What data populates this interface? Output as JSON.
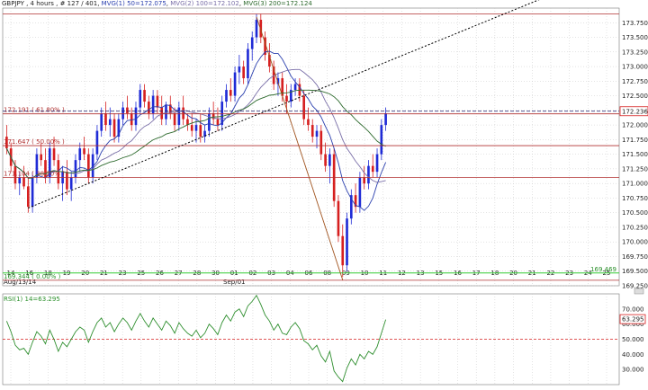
{
  "header": {
    "symbol": "GBPJPY",
    "sep1": " , ",
    "timeframe": "4 hours",
    "sep2": " , ",
    "bars": "# 127 / 401",
    "sep3": ", ",
    "ma1": "MVG(1) 50=172.075",
    "sep4": ", ",
    "ma2": "MVG(2) 100=172.102",
    "sep5": ", ",
    "ma3": "MVG(3) 200=172.124"
  },
  "colors": {
    "background": "#ffffff",
    "grid": "#c8c8c8",
    "bull": "#1f2bd6",
    "bear": "#d61f1f",
    "ma50": "#2a3fae",
    "ma100": "#7a6fa8",
    "ma200": "#2f6b2f",
    "rsi": "#2f8f2f",
    "fib": "#b03030",
    "fib_low": "#33cc33",
    "trend": "#000000"
  },
  "chart_data": [
    {
      "type": "candlestick",
      "title": "GBPJPY , 4 hours",
      "x_labels": [
        "14",
        "16",
        "18",
        "19",
        "20",
        "21",
        "23",
        "25",
        "26",
        "27",
        "28",
        "30",
        "01",
        "02",
        "03",
        "04",
        "06",
        "08",
        "09",
        "10",
        "11",
        "12",
        "13",
        "15",
        "16",
        "17",
        "18",
        "20",
        "21",
        "22",
        "23",
        "24",
        "25"
      ],
      "date_labels": [
        "Aug/13/14",
        "Sep/01"
      ],
      "ylim": [
        169.25,
        174.0
      ],
      "y_ticks": [
        "173.750",
        "173.500",
        "173.250",
        "173.000",
        "172.750",
        "172.500",
        "172.250",
        "172.000",
        "171.750",
        "171.500",
        "171.250",
        "171.000",
        "170.750",
        "170.500",
        "170.250",
        "170.000",
        "169.750",
        "169.500",
        "169.250"
      ],
      "current_price_label": "172.236",
      "current_price": 172.236,
      "fib_labels": [
        "172.191 ( 61.80% )",
        "171.647 ( 50.00% )",
        "171.104 ( 38.20% )",
        "169.344 ( 0.00% )"
      ],
      "fib_levels": [
        173.9,
        172.191,
        171.647,
        171.104,
        169.344
      ],
      "low_price_label": "169.469",
      "low_price": 169.469,
      "grid": true,
      "candles": [
        [
          171.8,
          172.0,
          171.5,
          171.6
        ],
        [
          171.6,
          171.7,
          171.2,
          171.3
        ],
        [
          171.3,
          171.4,
          170.9,
          171.0
        ],
        [
          171.0,
          171.2,
          170.8,
          171.1
        ],
        [
          171.1,
          171.3,
          170.9,
          170.95
        ],
        [
          170.95,
          171.1,
          170.5,
          170.6
        ],
        [
          170.6,
          171.2,
          170.5,
          171.1
        ],
        [
          171.1,
          171.6,
          171.0,
          171.5
        ],
        [
          171.5,
          171.7,
          171.3,
          171.4
        ],
        [
          171.4,
          171.6,
          171.0,
          171.1
        ],
        [
          171.1,
          171.7,
          171.0,
          171.6
        ],
        [
          171.6,
          171.8,
          171.3,
          171.4
        ],
        [
          171.4,
          171.5,
          170.9,
          171.0
        ],
        [
          171.0,
          171.3,
          170.7,
          171.2
        ],
        [
          171.2,
          171.4,
          170.8,
          170.9
        ],
        [
          170.9,
          171.2,
          170.7,
          171.1
        ],
        [
          171.1,
          171.5,
          171.0,
          171.4
        ],
        [
          171.4,
          171.7,
          171.2,
          171.6
        ],
        [
          171.6,
          171.8,
          171.4,
          171.5
        ],
        [
          171.5,
          171.6,
          171.0,
          171.1
        ],
        [
          171.1,
          171.6,
          171.0,
          171.5
        ],
        [
          171.5,
          172.0,
          171.4,
          171.9
        ],
        [
          171.9,
          172.3,
          171.8,
          172.2
        ],
        [
          172.2,
          172.4,
          171.9,
          172.0
        ],
        [
          172.0,
          172.3,
          171.8,
          172.1
        ],
        [
          172.1,
          172.2,
          171.7,
          171.8
        ],
        [
          171.8,
          172.2,
          171.7,
          172.1
        ],
        [
          172.1,
          172.4,
          172.0,
          172.3
        ],
        [
          172.3,
          172.5,
          172.1,
          172.2
        ],
        [
          172.2,
          172.3,
          171.9,
          172.0
        ],
        [
          172.0,
          172.4,
          171.9,
          172.3
        ],
        [
          172.3,
          172.7,
          172.2,
          172.6
        ],
        [
          172.6,
          172.7,
          172.3,
          172.4
        ],
        [
          172.4,
          172.5,
          172.1,
          172.2
        ],
        [
          172.2,
          172.6,
          172.1,
          172.5
        ],
        [
          172.5,
          172.6,
          172.2,
          172.3
        ],
        [
          172.3,
          172.5,
          172.0,
          172.1
        ],
        [
          172.1,
          172.4,
          172.0,
          172.35
        ],
        [
          172.35,
          172.5,
          172.1,
          172.2
        ],
        [
          172.2,
          172.3,
          171.9,
          172.0
        ],
        [
          172.0,
          172.4,
          171.9,
          172.3
        ],
        [
          172.3,
          172.5,
          172.0,
          172.1
        ],
        [
          172.1,
          172.2,
          171.9,
          172.0
        ],
        [
          172.0,
          172.2,
          171.8,
          171.9
        ],
        [
          171.9,
          172.1,
          171.7,
          172.0
        ],
        [
          172.0,
          172.2,
          171.7,
          171.8
        ],
        [
          171.8,
          172.0,
          171.7,
          171.9
        ],
        [
          171.9,
          172.3,
          171.8,
          172.2
        ],
        [
          172.2,
          172.4,
          172.0,
          172.1
        ],
        [
          172.1,
          172.3,
          171.9,
          172.0
        ],
        [
          172.0,
          172.5,
          171.9,
          172.4
        ],
        [
          172.4,
          172.7,
          172.3,
          172.6
        ],
        [
          172.6,
          172.8,
          172.4,
          172.5
        ],
        [
          172.5,
          173.0,
          172.4,
          172.9
        ],
        [
          172.9,
          173.2,
          172.7,
          173.0
        ],
        [
          173.0,
          173.1,
          172.7,
          172.8
        ],
        [
          172.8,
          173.4,
          172.7,
          173.3
        ],
        [
          173.3,
          173.6,
          173.1,
          173.5
        ],
        [
          173.5,
          173.9,
          173.4,
          173.8
        ],
        [
          173.8,
          173.9,
          173.4,
          173.5
        ],
        [
          173.5,
          173.6,
          173.1,
          173.2
        ],
        [
          173.2,
          173.4,
          172.9,
          173.0
        ],
        [
          173.0,
          173.1,
          172.6,
          172.7
        ],
        [
          172.7,
          172.9,
          172.5,
          172.8
        ],
        [
          172.8,
          172.9,
          172.4,
          172.5
        ],
        [
          172.5,
          172.7,
          172.2,
          172.4
        ],
        [
          172.4,
          172.7,
          172.3,
          172.6
        ],
        [
          172.6,
          172.8,
          172.5,
          172.7
        ],
        [
          172.7,
          172.8,
          172.4,
          172.5
        ],
        [
          172.5,
          172.6,
          172.0,
          172.1
        ],
        [
          172.1,
          172.3,
          171.9,
          172.0
        ],
        [
          172.0,
          172.1,
          171.7,
          171.8
        ],
        [
          171.8,
          172.0,
          171.6,
          171.9
        ],
        [
          171.9,
          172.0,
          171.4,
          171.5
        ],
        [
          171.5,
          171.7,
          171.2,
          171.3
        ],
        [
          171.3,
          171.6,
          171.0,
          171.5
        ],
        [
          171.5,
          171.6,
          170.6,
          170.7
        ],
        [
          170.7,
          170.8,
          170.0,
          170.1
        ],
        [
          170.1,
          170.3,
          169.4,
          169.6
        ],
        [
          169.6,
          170.5,
          169.5,
          170.4
        ],
        [
          170.4,
          170.9,
          170.3,
          170.8
        ],
        [
          170.8,
          171.0,
          170.5,
          170.6
        ],
        [
          170.6,
          171.2,
          170.5,
          171.1
        ],
        [
          171.1,
          171.3,
          170.9,
          171.0
        ],
        [
          171.0,
          171.4,
          170.9,
          171.3
        ],
        [
          171.3,
          171.5,
          171.1,
          171.2
        ],
        [
          171.2,
          171.6,
          171.1,
          171.5
        ],
        [
          171.5,
          172.1,
          171.4,
          172.0
        ],
        [
          172.0,
          172.3,
          171.9,
          172.2
        ]
      ]
    },
    {
      "type": "line",
      "title": "RSI(1) 14=63.295",
      "ylim": [
        20,
        80
      ],
      "y_ticks": [
        "70.000",
        "60.000",
        "50.000",
        "40.000",
        "30.000"
      ],
      "current_value_label": "63.295",
      "reference_level": 50,
      "values": [
        62,
        55,
        46,
        43,
        44,
        40,
        48,
        55,
        52,
        47,
        56,
        50,
        42,
        48,
        45,
        50,
        55,
        58,
        56,
        48,
        55,
        61,
        64,
        58,
        61,
        55,
        60,
        64,
        61,
        56,
        62,
        67,
        62,
        58,
        64,
        60,
        56,
        62,
        59,
        54,
        61,
        57,
        54,
        52,
        56,
        51,
        54,
        60,
        57,
        53,
        61,
        66,
        62,
        68,
        70,
        65,
        72,
        75,
        79,
        73,
        66,
        62,
        56,
        60,
        54,
        53,
        58,
        61,
        57,
        49,
        47,
        43,
        46,
        39,
        35,
        42,
        29,
        25,
        22,
        31,
        37,
        33,
        40,
        37,
        42,
        40,
        45,
        54,
        63
      ]
    }
  ]
}
